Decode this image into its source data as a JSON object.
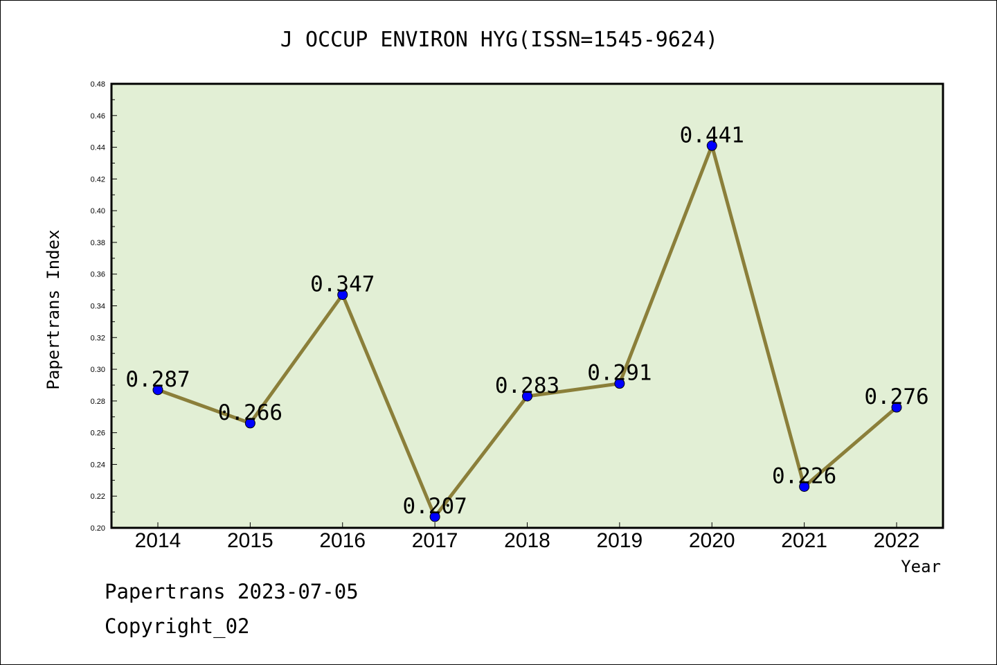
{
  "chart_data": {
    "type": "line",
    "title": "J OCCUP ENVIRON HYG(ISSN=1545-9624)",
    "xlabel": "Year",
    "ylabel": "Papertrans Index",
    "categories": [
      "2014",
      "2015",
      "2016",
      "2017",
      "2018",
      "2019",
      "2020",
      "2021",
      "2022"
    ],
    "values": [
      0.287,
      0.266,
      0.347,
      0.207,
      0.283,
      0.291,
      0.441,
      0.226,
      0.276
    ],
    "data_labels": [
      "0.287",
      "0.266",
      "0.347",
      "0.207",
      "0.283",
      "0.291",
      "0.441",
      "0.226",
      "0.276"
    ],
    "ylim": [
      0.2,
      0.48
    ],
    "yticks": [
      "0.20",
      "0.22",
      "0.24",
      "0.26",
      "0.28",
      "0.30",
      "0.32",
      "0.34",
      "0.36",
      "0.38",
      "0.40",
      "0.42",
      "0.44",
      "0.46",
      "0.48"
    ],
    "grid": false,
    "colors": {
      "plot_background": "#e2efd5",
      "line": "#8b7f3a",
      "marker": "#0000ff"
    }
  },
  "footer": {
    "line1": "Papertrans 2023-07-05",
    "line2": "Copyright_02"
  }
}
